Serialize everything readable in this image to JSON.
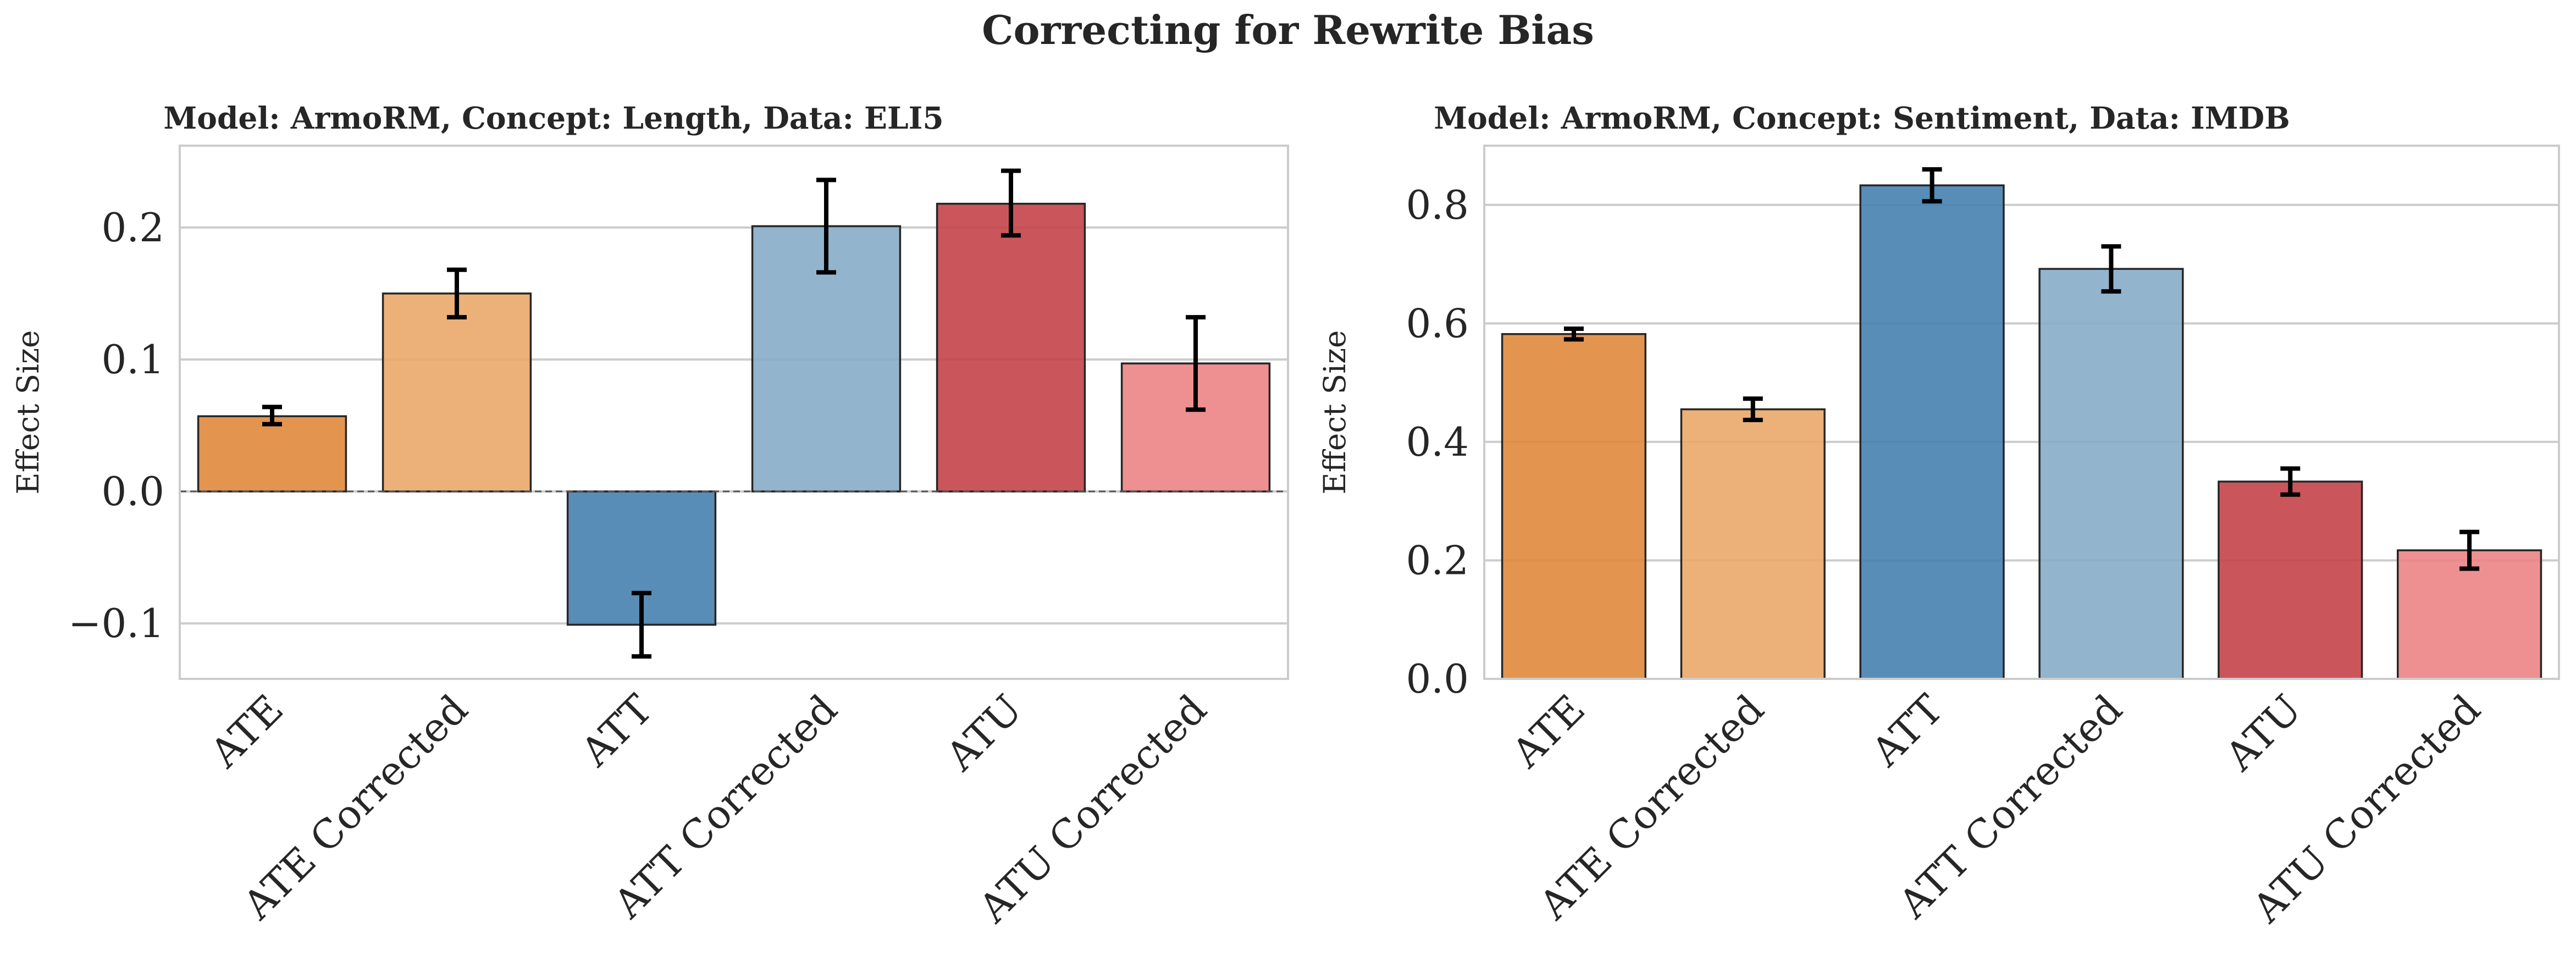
{
  "figure": {
    "title": "Correcting for Rewrite Bias"
  },
  "colors": [
    "#e08a3c",
    "#eaa96a",
    "#4681b0",
    "#87acc8",
    "#c4444a",
    "#ec8385"
  ],
  "chart_data": [
    {
      "type": "bar",
      "title": "Model: ArmoRM, Concept: Length, Data: ELI5",
      "xlabel": "",
      "ylabel": "Effect Size",
      "categories": [
        "ATE",
        "ATE Corrected",
        "ATT",
        "ATT Corrected",
        "ATU",
        "ATU Corrected"
      ],
      "values": [
        0.057,
        0.15,
        -0.101,
        0.201,
        0.218,
        0.097
      ],
      "error_low": [
        0.051,
        0.132,
        -0.125,
        0.166,
        0.194,
        0.062
      ],
      "error_high": [
        0.064,
        0.168,
        -0.077,
        0.236,
        0.243,
        0.132
      ],
      "yticks": [
        -0.1,
        0.0,
        0.1,
        0.2
      ],
      "ytick_labels": [
        "−0.1",
        "0.0",
        "0.1",
        "0.2"
      ],
      "ylim": [
        -0.142,
        0.262
      ],
      "zero_line": true,
      "grid": "horizontal"
    },
    {
      "type": "bar",
      "title": "Model: ArmoRM, Concept: Sentiment, Data: IMDB",
      "xlabel": "",
      "ylabel": "Effect Size",
      "categories": [
        "ATE",
        "ATE Corrected",
        "ATT",
        "ATT Corrected",
        "ATU",
        "ATU Corrected"
      ],
      "values": [
        0.582,
        0.455,
        0.833,
        0.692,
        0.333,
        0.217
      ],
      "error_low": [
        0.573,
        0.437,
        0.806,
        0.654,
        0.311,
        0.186
      ],
      "error_high": [
        0.591,
        0.473,
        0.86,
        0.73,
        0.355,
        0.248
      ],
      "yticks": [
        0.0,
        0.2,
        0.4,
        0.6,
        0.8
      ],
      "ytick_labels": [
        "0.0",
        "0.2",
        "0.4",
        "0.6",
        "0.8"
      ],
      "ylim": [
        0.0,
        0.9
      ],
      "zero_line": false,
      "grid": "horizontal"
    }
  ]
}
